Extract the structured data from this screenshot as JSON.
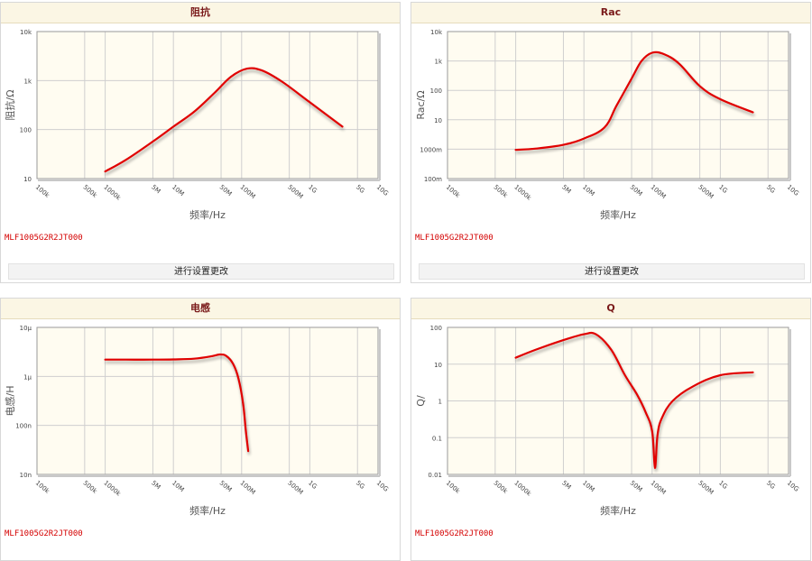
{
  "part_number": "MLF1005G2R2JT000",
  "settings_button_label": "进行设置更改",
  "x_ticks": [
    "100k",
    "500k",
    "1000k",
    "5M",
    "10M",
    "50M",
    "100M",
    "500M",
    "1G",
    "5G",
    "10G"
  ],
  "xlabel": "频率/Hz",
  "charts": [
    {
      "type": "line",
      "title": "阻抗",
      "ylabel": "阻抗/Ω",
      "y_ticks": [
        "10k",
        "1k",
        "100",
        "10"
      ],
      "ylim": [
        10,
        10000
      ],
      "xlim": [
        100000,
        10000000000
      ],
      "series": [
        {
          "x": [
            1000000,
            2000000,
            5000000,
            10000000,
            20000000,
            40000000,
            70000000,
            120000000,
            200000000,
            400000000,
            1000000000,
            3000000000
          ],
          "y": [
            14,
            24,
            57,
            115,
            230,
            560,
            1200,
            1750,
            1600,
            930,
            360,
            115
          ]
        }
      ]
    },
    {
      "type": "line",
      "title": "Rac",
      "ylabel": "Rac/Ω",
      "y_ticks": [
        "10k",
        "1k",
        "100",
        "10",
        "1000m",
        "100m"
      ],
      "ylim": [
        0.1,
        10000
      ],
      "xlim": [
        100000,
        10000000000
      ],
      "series": [
        {
          "x": [
            1000000,
            2000000,
            5000000,
            10000000,
            20000000,
            30000000,
            50000000,
            70000000,
            100000000,
            150000000,
            250000000,
            500000000,
            1000000000,
            3000000000
          ],
          "y": [
            0.95,
            1.05,
            1.4,
            2.3,
            5.5,
            30,
            250,
            1000,
            1900,
            1700,
            800,
            140,
            50,
            18
          ]
        }
      ]
    },
    {
      "type": "line",
      "title": "电感",
      "ylabel": "电感/H",
      "y_ticks": [
        "10μ",
        "1μ",
        "100n",
        "10n"
      ],
      "ylim": [
        1e-08,
        1e-05
      ],
      "xlim": [
        100000,
        10000000000
      ],
      "series": [
        {
          "x": [
            1000000,
            2000000,
            5000000,
            10000000,
            20000000,
            35000000,
            48000000,
            60000000,
            75000000,
            90000000,
            105000000,
            115000000,
            125000000
          ],
          "y": [
            2.2e-06,
            2.2e-06,
            2.2e-06,
            2.22e-06,
            2.3e-06,
            2.55e-06,
            2.8e-06,
            2.6e-06,
            1.8e-06,
            9e-07,
            2.8e-07,
            8e-08,
            3e-08
          ]
        }
      ]
    },
    {
      "type": "line",
      "title": "Q",
      "ylabel": "Q/",
      "y_ticks": [
        "100",
        "10",
        "1",
        "0.1",
        "0.01"
      ],
      "ylim": [
        0.01,
        100
      ],
      "xlim": [
        100000,
        10000000000
      ],
      "series": [
        {
          "x": [
            1000000,
            2000000,
            5000000,
            10000000,
            15000000,
            25000000,
            40000000,
            60000000,
            80000000,
            100000000,
            110000000,
            120000000,
            140000000,
            200000000,
            400000000,
            1000000000,
            3000000000
          ],
          "y": [
            15,
            25,
            45,
            65,
            65,
            25,
            5,
            1.5,
            0.5,
            0.15,
            0.015,
            0.12,
            0.35,
            1,
            2.5,
            5,
            6
          ]
        }
      ]
    }
  ]
}
